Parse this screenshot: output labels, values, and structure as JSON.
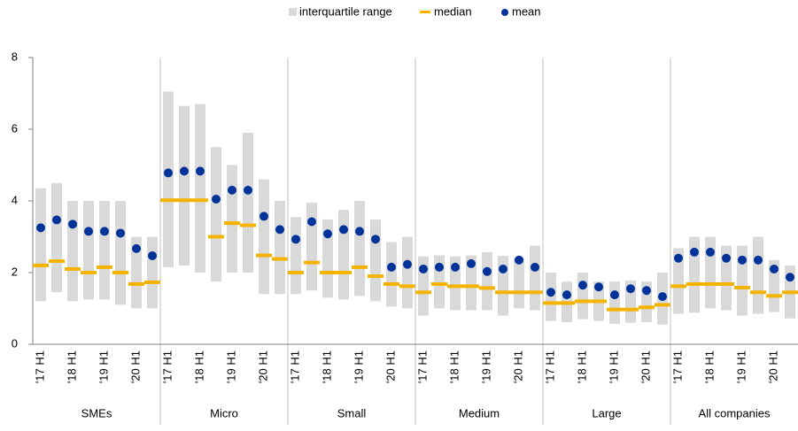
{
  "chart_data": {
    "type": "range",
    "categories": [
      "'17 H1",
      null,
      "'18 H1",
      null,
      "'19 H1",
      null,
      "'20 H1",
      null
    ],
    "groups": [
      "SMEs",
      "Micro",
      "Small",
      "Medium",
      "Large",
      "All companies"
    ],
    "series": [
      {
        "name": "interquartile range",
        "color": "#d9d9d9",
        "low": [
          [
            1.2,
            1.45,
            1.2,
            1.25,
            1.25,
            1.1,
            1.0,
            1.0
          ],
          [
            2.15,
            2.2,
            2.0,
            1.75,
            2.0,
            2.0,
            1.4,
            1.4
          ],
          [
            1.4,
            1.5,
            1.3,
            1.25,
            1.35,
            1.2,
            1.05,
            1.0
          ],
          [
            0.8,
            1.0,
            0.95,
            0.95,
            0.95,
            0.8,
            1.0,
            0.95
          ],
          [
            0.65,
            0.62,
            0.7,
            0.65,
            0.57,
            0.6,
            0.62,
            0.55
          ],
          [
            0.85,
            0.88,
            1.0,
            0.95,
            0.8,
            0.85,
            0.9,
            0.72
          ]
        ],
        "high": [
          [
            4.35,
            4.5,
            4.0,
            4.0,
            4.0,
            4.0,
            3.0,
            3.0
          ],
          [
            7.05,
            6.65,
            6.7,
            5.5,
            5.0,
            5.9,
            4.6,
            4.0
          ],
          [
            3.55,
            3.95,
            3.48,
            3.75,
            4.0,
            3.48,
            2.85,
            3.0
          ],
          [
            2.45,
            2.48,
            2.45,
            2.48,
            2.57,
            2.47,
            2.4,
            2.75
          ],
          [
            2.0,
            1.75,
            2.0,
            1.75,
            1.75,
            1.78,
            1.75,
            2.0
          ],
          [
            2.68,
            3.0,
            3.0,
            2.75,
            2.75,
            3.0,
            2.35,
            2.2
          ]
        ]
      },
      {
        "name": "median",
        "color": "#f5b300",
        "values": [
          [
            2.2,
            2.32,
            2.1,
            2.0,
            2.15,
            2.0,
            1.68,
            1.73
          ],
          [
            4.02,
            4.02,
            4.02,
            3.0,
            3.38,
            3.32,
            2.48,
            2.38
          ],
          [
            2.0,
            2.28,
            2.0,
            2.0,
            2.15,
            1.9,
            1.68,
            1.62
          ],
          [
            1.45,
            1.68,
            1.62,
            1.62,
            1.57,
            1.45,
            1.45,
            1.45
          ],
          [
            1.15,
            1.15,
            1.2,
            1.2,
            0.97,
            0.97,
            1.03,
            1.1
          ],
          [
            1.62,
            1.68,
            1.68,
            1.68,
            1.58,
            1.45,
            1.35,
            1.45
          ]
        ]
      },
      {
        "name": "mean",
        "color": "#003399",
        "values": [
          [
            3.25,
            3.47,
            3.35,
            3.15,
            3.15,
            3.1,
            2.67,
            2.47
          ],
          [
            4.78,
            4.83,
            4.83,
            4.05,
            4.3,
            4.3,
            3.57,
            3.2
          ],
          [
            2.93,
            3.42,
            3.08,
            3.2,
            3.15,
            2.93,
            2.15,
            2.23
          ],
          [
            2.1,
            2.15,
            2.15,
            2.25,
            2.03,
            2.1,
            2.35,
            2.15
          ],
          [
            1.45,
            1.38,
            1.65,
            1.6,
            1.38,
            1.55,
            1.5,
            1.33
          ],
          [
            2.4,
            2.57,
            2.57,
            2.4,
            2.35,
            2.35,
            2.1,
            1.87
          ]
        ]
      }
    ],
    "ylim": [
      0,
      8
    ],
    "yticks": [
      0,
      2,
      4,
      6,
      8
    ]
  }
}
